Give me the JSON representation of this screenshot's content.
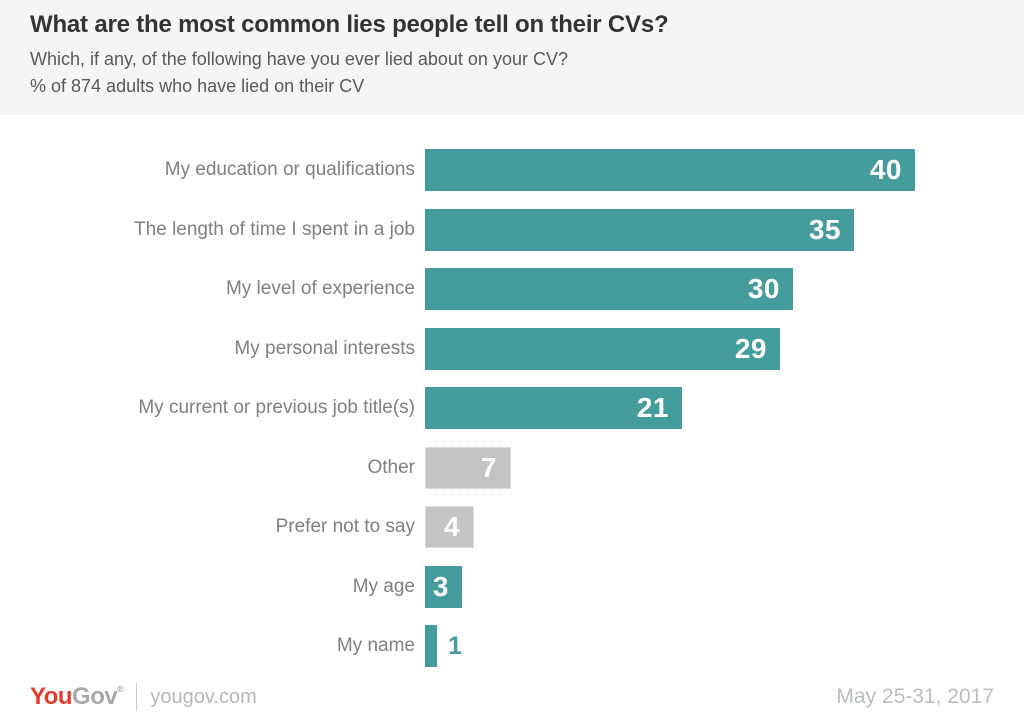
{
  "header": {
    "title": "What are the most common lies people tell on their CVs?",
    "subtitle_line1": "Which, if any, of the following have you ever lied about on your CV?",
    "subtitle_line2": "% of 874 adults who have lied on their CV"
  },
  "chart_data": {
    "type": "bar",
    "orientation": "horizontal",
    "title": "What are the most common lies people tell on their CVs?",
    "xlabel": "",
    "ylabel": "",
    "categories": [
      "My education or qualifications",
      "The length of time I spent in a job",
      "My level of experience",
      "My personal interests",
      "My current or previous job title(s)",
      "Other",
      "Prefer not to say",
      "My age",
      "My name"
    ],
    "values": [
      40,
      35,
      30,
      29,
      21,
      7,
      4,
      3,
      1
    ],
    "bar_styles": [
      "primary",
      "primary",
      "primary",
      "primary",
      "primary",
      "muted",
      "muted",
      "primary",
      "primary"
    ],
    "xlim": [
      0,
      40
    ],
    "grid": false,
    "legend": "none",
    "value_labels_shown": true,
    "units": "%"
  },
  "colors": {
    "primary_bar": "#459c9c",
    "muted_bar": "#c4c4c4",
    "header_bg": "#f4f5f6",
    "title_text": "#333333",
    "subtitle_text": "#595959",
    "category_label": "#808080",
    "value_label_inside": "#ffffff",
    "logo_red": "#e23b2e",
    "logo_gray": "#a9a9a9",
    "footer_text": "#b9bfc0"
  },
  "footer": {
    "logo_part1": "You",
    "logo_part2": "Gov",
    "logo_mark": "®",
    "site": "yougov.com",
    "date_range": "May 25-31, 2017"
  }
}
